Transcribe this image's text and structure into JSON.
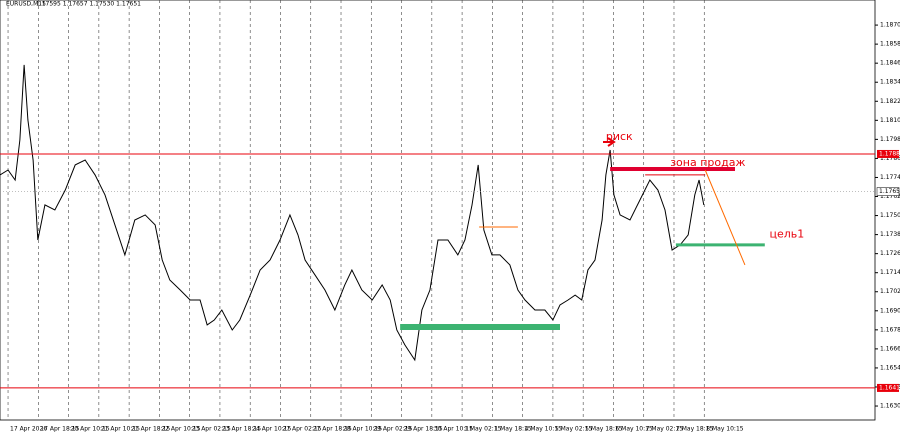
{
  "chart_data": {
    "type": "line",
    "symbol": "EURUSD,M15",
    "ohlc": "1.17595 1.17657 1.17530 1.17651",
    "xlim": [
      -17,
      1833
    ],
    "ylim": [
      1.16212,
      1.18858
    ],
    "xticks": [
      {
        "value": 0,
        "label": "17 Apr 2026"
      },
      {
        "value": 64,
        "label": "17 Apr 18:15"
      },
      {
        "value": 128,
        "label": "20 Apr 10:15"
      },
      {
        "value": 192,
        "label": "21 Apr 10:15"
      },
      {
        "value": 256,
        "label": "21 Apr 18:15"
      },
      {
        "value": 320,
        "label": "22 Apr 10:15"
      },
      {
        "value": 384,
        "label": "23 Apr 02:15"
      },
      {
        "value": 448,
        "label": "23 Apr 18:15"
      },
      {
        "value": 512,
        "label": "24 Apr 10:15"
      },
      {
        "value": 576,
        "label": "27 Apr 02:15"
      },
      {
        "value": 640,
        "label": "27 Apr 18:15"
      },
      {
        "value": 704,
        "label": "28 Apr 10:15"
      },
      {
        "value": 768,
        "label": "29 Apr 02:15"
      },
      {
        "value": 832,
        "label": "29 Apr 18:15"
      },
      {
        "value": 896,
        "label": "30 Apr 10:15"
      },
      {
        "value": 960,
        "label": "1 May 02:15"
      },
      {
        "value": 1024,
        "label": "1 May 18:15"
      },
      {
        "value": 1088,
        "label": "4 May 10:15"
      },
      {
        "value": 1152,
        "label": "5 May 02:15"
      },
      {
        "value": 1216,
        "label": "5 May 18:15"
      },
      {
        "value": 1280,
        "label": "6 May 10:15"
      },
      {
        "value": 1344,
        "label": "7 May 02:15"
      },
      {
        "value": 1408,
        "label": "7 May 18:15"
      },
      {
        "value": 1472,
        "label": "8 May 10:15"
      }
    ],
    "yticks": [
      {
        "value": 1.163,
        "label": "1.16300"
      },
      {
        "value": 1.1642,
        "label": "1.16420"
      },
      {
        "value": 1.1654,
        "label": "1.16540"
      },
      {
        "value": 1.1666,
        "label": "1.16660"
      },
      {
        "value": 1.1678,
        "label": "1.16780"
      },
      {
        "value": 1.169,
        "label": "1.16900"
      },
      {
        "value": 1.1702,
        "label": "1.17020"
      },
      {
        "value": 1.1714,
        "label": "1.17140"
      },
      {
        "value": 1.1726,
        "label": "1.17260"
      },
      {
        "value": 1.1738,
        "label": "1.17380"
      },
      {
        "value": 1.175,
        "label": "1.17500"
      },
      {
        "value": 1.1762,
        "label": "1.17620"
      },
      {
        "value": 1.1774,
        "label": "1.17740"
      },
      {
        "value": 1.1786,
        "label": "1.17860"
      },
      {
        "value": 1.1798,
        "label": "1.17980"
      },
      {
        "value": 1.181,
        "label": "1.18100"
      },
      {
        "value": 1.1822,
        "label": "1.18220"
      },
      {
        "value": 1.1834,
        "label": "1.18340"
      },
      {
        "value": 1.1846,
        "label": "1.18460"
      },
      {
        "value": 1.1858,
        "label": "1.18580"
      },
      {
        "value": 1.187,
        "label": "1.18700"
      }
    ],
    "x": [
      -17,
      0,
      15,
      25,
      34,
      42,
      53,
      63,
      78,
      99,
      121,
      142,
      163,
      184,
      205,
      226,
      247,
      268,
      290,
      311,
      326,
      342,
      364,
      385,
      406,
      421,
      436,
      452,
      474,
      490,
      512,
      533,
      554,
      575,
      596,
      613,
      628,
      649,
      670,
      691,
      712,
      727,
      748,
      770,
      791,
      808,
      822,
      839,
      860,
      875,
      892,
      909,
      930,
      951,
      966,
      981,
      994,
      1006,
      1023,
      1040,
      1061,
      1078,
      1093,
      1114,
      1135,
      1152,
      1167,
      1184,
      1199,
      1213,
      1226,
      1241,
      1256,
      1264,
      1273,
      1281,
      1294,
      1315,
      1336,
      1357,
      1374,
      1389,
      1404,
      1421,
      1438,
      1452,
      1461,
      1471
    ],
    "series": [
      {
        "name": "EURUSD,M15",
        "color": "#000000",
        "values": [
          1.17756,
          1.17787,
          1.17724,
          1.17976,
          1.18449,
          1.18102,
          1.1785,
          1.17346,
          1.17567,
          1.17535,
          1.17661,
          1.17819,
          1.1785,
          1.17756,
          1.1763,
          1.17441,
          1.17252,
          1.17472,
          1.17504,
          1.17441,
          1.1722,
          1.17094,
          1.17031,
          1.16968,
          1.16968,
          1.16811,
          1.16842,
          1.16905,
          1.16779,
          1.16842,
          1.16999,
          1.17157,
          1.1722,
          1.17346,
          1.17504,
          1.17378,
          1.1722,
          1.17126,
          1.17031,
          1.16905,
          1.17063,
          1.17157,
          1.17031,
          1.16968,
          1.17063,
          1.16968,
          1.16779,
          1.16685,
          1.1659,
          1.16905,
          1.17031,
          1.17346,
          1.17346,
          1.17252,
          1.17346,
          1.17567,
          1.17819,
          1.17409,
          1.17252,
          1.17252,
          1.17189,
          1.17031,
          1.16968,
          1.16905,
          1.16905,
          1.16842,
          1.16937,
          1.16968,
          1.16999,
          1.16968,
          1.17157,
          1.1722,
          1.17472,
          1.17756,
          1.17913,
          1.1763,
          1.17504,
          1.17472,
          1.17598,
          1.17724,
          1.17661,
          1.17535,
          1.17283,
          1.17315,
          1.17378,
          1.1763,
          1.17724,
          1.17567
        ]
      }
    ],
    "levels": [
      {
        "value": 1.17888,
        "label": "1.17888",
        "color": "#e8000b"
      },
      {
        "value": 1.16414,
        "label": "1.16414",
        "color": "#e8000b"
      }
    ],
    "current": {
      "value": 1.17651,
      "label": "1.17651",
      "color": "#999999"
    },
    "segments": [
      {
        "x": [
          1273,
          1537
        ],
        "y": [
          1.17793,
          1.17793
        ],
        "color": "#e00030",
        "width": 4
      },
      {
        "x": [
          1347,
          1474
        ],
        "y": [
          1.17756,
          1.17756
        ],
        "color": "#e8000b",
        "width": 1
      },
      {
        "x": [
          996,
          1078
        ],
        "y": [
          1.17428,
          1.17428
        ],
        "color": "#ff6a00",
        "width": 1
      },
      {
        "x": [
          829,
          1167
        ],
        "y": [
          1.16798,
          1.16798
        ],
        "color": "#3cb371",
        "width": 6
      },
      {
        "x": [
          1412,
          1600
        ],
        "y": [
          1.17315,
          1.17315
        ],
        "color": "#3cb371",
        "width": 3
      },
      {
        "x": [
          1474,
          1558
        ],
        "y": [
          1.17787,
          1.17189
        ],
        "color": "#ff6a00",
        "width": 1
      }
    ],
    "annotations": [
      {
        "text": "риск",
        "x": 1264,
        "y": 1.17995,
        "color": "#e8000b"
      },
      {
        "text": "зона продаж",
        "x": 1400,
        "y": 1.1783,
        "color": "#e8000b"
      },
      {
        "text": "цель1",
        "x": 1610,
        "y": 1.1738,
        "color": "#e8000b"
      }
    ]
  }
}
